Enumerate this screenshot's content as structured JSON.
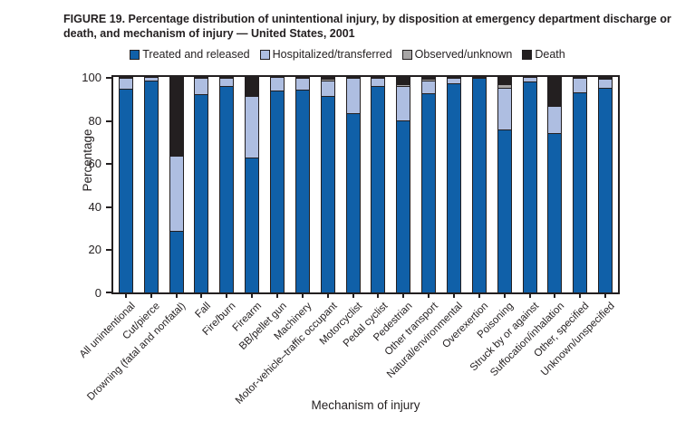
{
  "figure": {
    "title": "FIGURE 19. Percentage distribution of unintentional injury, by disposition at emergency department discharge or death, and mechanism of injury — United States, 2001"
  },
  "colors": {
    "treated": "#1060a8",
    "hospitalized": "#aebee1",
    "observed": "#a7a5a5",
    "death": "#231f20",
    "axis": "#231f20"
  },
  "chart_data": {
    "type": "bar",
    "stacked": true,
    "title": "FIGURE 19. Percentage distribution of unintentional injury, by disposition at emergency department discharge or death, and mechanism of injury — United States, 2001",
    "xlabel": "Mechanism of injury",
    "ylabel": "Percentage",
    "ylim": [
      0,
      100
    ],
    "yticks": [
      0,
      20,
      40,
      60,
      80,
      100
    ],
    "legend_position": "top",
    "grid": false,
    "categories": [
      "All unintentional",
      "Cut/pierce",
      "Drowning (fatal and nonfatal)",
      "Fall",
      "Fire/burn",
      "Firearm",
      "BB/pellet gun",
      "Machinery",
      "Motor-vehicle–traffic occupant",
      "Motorcyclist",
      "Pedal cyclist",
      "Pedestrian",
      "Other transport",
      "Natural/environmental",
      "Overexertion",
      "Poisoning",
      "Struck by or against",
      "Suffocation/inhalation",
      "Other, specified",
      "Unknown/unspecified"
    ],
    "series": [
      {
        "name": "Treated and released",
        "color": "#1060a8",
        "values": [
          94.5,
          98.5,
          28.5,
          92,
          96,
          62.5,
          93.5,
          94,
          91,
          83,
          96,
          80,
          92.5,
          97,
          99.5,
          75.5,
          98,
          74,
          93,
          95
        ]
      },
      {
        "name": "Hospitalized/transferred",
        "color": "#aebee1",
        "values": [
          5,
          1.5,
          35,
          7.5,
          3.5,
          28.5,
          6.5,
          5.5,
          7.5,
          16.5,
          3.5,
          16,
          6,
          2.5,
          0.5,
          19.5,
          2,
          12.5,
          6.5,
          4
        ]
      },
      {
        "name": "Observed/unknown",
        "color": "#a7a5a5",
        "values": [
          0.5,
          0,
          0,
          0.5,
          0,
          0,
          0,
          0,
          0.5,
          0,
          0,
          0.5,
          0.5,
          0.5,
          0,
          1.5,
          0,
          0.5,
          0,
          0
        ]
      },
      {
        "name": "Death",
        "color": "#231f20",
        "values": [
          0,
          0,
          36.5,
          0,
          0.5,
          9,
          0,
          0.5,
          1,
          0.5,
          0.5,
          3.5,
          1,
          0,
          0,
          3.5,
          0,
          13,
          0.5,
          1
        ]
      }
    ]
  }
}
